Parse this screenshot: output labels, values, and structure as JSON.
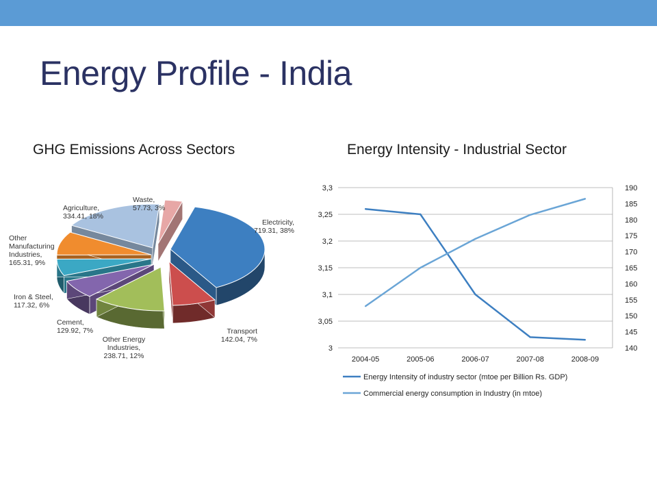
{
  "slide": {
    "title": "Energy Profile - India",
    "left_subtitle": "GHG Emissions Across Sectors",
    "right_subtitle": "Energy Intensity - Industrial Sector",
    "accent_color": "#5b9bd5",
    "title_color": "#2b3263"
  },
  "chart_data": [
    {
      "type": "pie",
      "style": "3d-exploded",
      "title": "",
      "slices": [
        {
          "label": "Electricity,",
          "value_text": "719.31, 38%",
          "value": 719.31,
          "percent": 38,
          "color": "#3d7fc1"
        },
        {
          "label": "Transport",
          "value_text": "142.04, 7%",
          "value": 142.04,
          "percent": 7,
          "color": "#cc4e4d"
        },
        {
          "label": "Other Energy Industries,",
          "label_lines": [
            "Other Energy",
            "Industries,"
          ],
          "value_text": "238.71, 12%",
          "value": 238.71,
          "percent": 12,
          "color": "#a2be5a"
        },
        {
          "label": "Cement,",
          "value_text": "129.92, 7%",
          "value": 129.92,
          "percent": 7,
          "color": "#8366ad"
        },
        {
          "label": "Iron & Steel,",
          "value_text": "117.32, 6%",
          "value": 117.32,
          "percent": 6,
          "color": "#3ba8c4"
        },
        {
          "label": "Other Manufacturing Industries,",
          "label_lines": [
            "Other",
            "Manufacturing",
            "Industries,"
          ],
          "value_text": "165.31, 9%",
          "value": 165.31,
          "percent": 9,
          "color": "#f08c2e"
        },
        {
          "label": "Agriculture,",
          "value_text": "334.41, 18%",
          "value": 334.41,
          "percent": 18,
          "color": "#a9c2e0"
        },
        {
          "label": "Waste,",
          "value_text": "57.73, 3%",
          "value": 57.73,
          "percent": 3,
          "color": "#e7a7a6"
        }
      ]
    },
    {
      "type": "line",
      "title": "",
      "categories": [
        "2004-05",
        "2005-06",
        "2006-07",
        "2007-08",
        "2008-09"
      ],
      "ylim_left": [
        3,
        3.3
      ],
      "yticks_left": [
        "3",
        "3,05",
        "3,1",
        "3,15",
        "3,2",
        "3,25",
        "3,3"
      ],
      "ylim_right": [
        140,
        190
      ],
      "yticks_right": [
        "140",
        "145",
        "150",
        "155",
        "160",
        "165",
        "170",
        "175",
        "180",
        "185",
        "190"
      ],
      "grid": true,
      "legend_position": "bottom",
      "series": [
        {
          "name": "Energy Intensity of industry sector (mtoe per Billion Rs. GDP)",
          "axis": "left",
          "values": [
            3.26,
            3.25,
            3.1,
            3.02,
            3.015
          ],
          "color": "#3d7fc1"
        },
        {
          "name": "Commercial energy consumption in Industry (in mtoe)",
          "axis": "right",
          "values": [
            153,
            165,
            174,
            181.5,
            186.5
          ],
          "color": "#6aa5d6"
        }
      ]
    }
  ]
}
